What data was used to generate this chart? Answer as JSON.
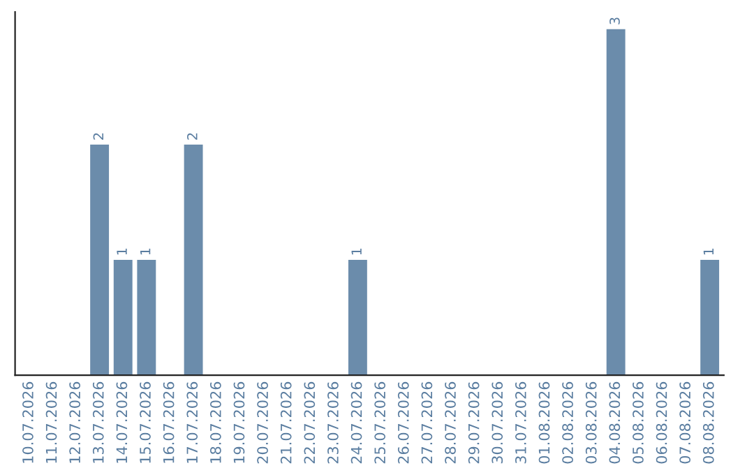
{
  "chart_data": {
    "type": "bar",
    "categories": [
      "10.07.2026",
      "11.07.2026",
      "12.07.2026",
      "13.07.2026",
      "14.07.2026",
      "15.07.2026",
      "16.07.2026",
      "17.07.2026",
      "18.07.2026",
      "19.07.2026",
      "20.07.2026",
      "21.07.2026",
      "22.07.2026",
      "23.07.2026",
      "24.07.2026",
      "25.07.2026",
      "26.07.2026",
      "27.07.2026",
      "28.07.2026",
      "29.07.2026",
      "30.07.2026",
      "31.07.2026",
      "01.08.2026",
      "02.08.2026",
      "03.08.2026",
      "04.08.2026",
      "05.08.2026",
      "06.08.2026",
      "07.08.2026",
      "08.08.2026"
    ],
    "values": [
      0,
      0,
      0,
      2,
      1,
      1,
      0,
      2,
      0,
      0,
      0,
      0,
      0,
      0,
      1,
      0,
      0,
      0,
      0,
      0,
      0,
      0,
      0,
      0,
      0,
      3,
      0,
      0,
      0,
      1
    ],
    "value_labels": [
      null,
      null,
      null,
      "2",
      "1",
      "1",
      null,
      "2",
      null,
      null,
      null,
      null,
      null,
      null,
      "1",
      null,
      null,
      null,
      null,
      null,
      null,
      null,
      null,
      null,
      null,
      "3",
      null,
      null,
      null,
      "1"
    ],
    "color": "#6b8cab",
    "ylim": [
      0,
      3.15
    ],
    "grid": false,
    "legend": false
  }
}
